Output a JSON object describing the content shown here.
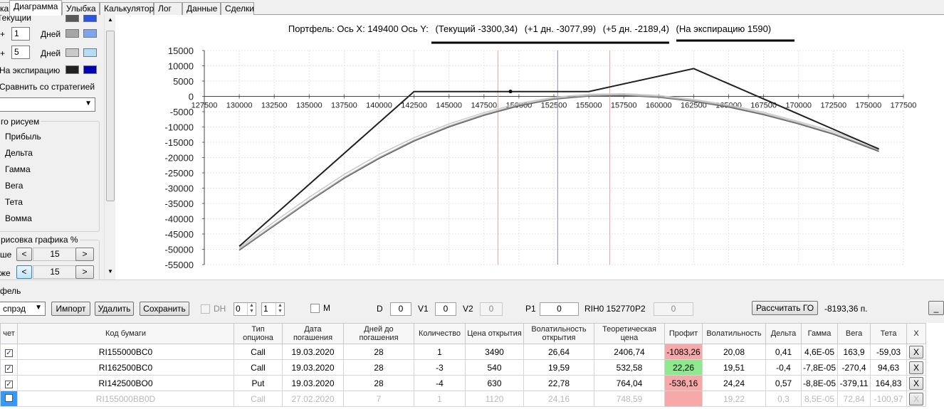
{
  "tabs": [
    "ка",
    "Диаграмма",
    "Улыбка",
    "Калькулятор",
    "Лог",
    "Данные",
    "Сделки"
  ],
  "left_panel": {
    "row_current_label": "Текущий",
    "row1_prefix": "+",
    "row1_value": "1",
    "row1_unit": "Дней",
    "row2_prefix": "+",
    "row2_value": "5",
    "row2_unit": "Дней",
    "expiry_label": "На экспирацию",
    "compare_label": "Сравнить со стратегией",
    "draw_group_title": "го рисуем",
    "draw_items": [
      "Прибыль",
      "Дельта",
      "Гамма",
      "Вега",
      "Тета",
      "Вомма"
    ],
    "render_group_title": "рисовка графика %",
    "higher_label": "ше",
    "higher_value": "15",
    "lower_label": "же",
    "lower_value": "15",
    "btn_less": "<",
    "btn_more": ">",
    "swatch_colors": {
      "current": [
        "#595959",
        "#2b57e0"
      ],
      "plus1": [
        "#a6a6a6",
        "#7ea6ee"
      ],
      "plus5": [
        "#c9c9c9",
        "#b3dcf7"
      ],
      "expiry": [
        "#202020",
        "#0000b8"
      ]
    }
  },
  "chart": {
    "title_prefix": "Портфель: Ось X: 149400 Ось Y:",
    "current": "(Текущий -3300,34)",
    "plus1": "(+1 дн. -3077,99)",
    "plus5": "(+5 дн. -2189,4)",
    "expiry": "(На экспирацию 1590)"
  },
  "chart_data": {
    "type": "line",
    "title": "Портфель: Ось X: 149400 Ось Y: (Текущий -3300,34) (+1 дн. -3077,99) (+5 дн. -2189,4) (На экспирацию 1590)",
    "xlim": [
      127500,
      177500
    ],
    "ylim": [
      -55000,
      15000
    ],
    "xticks": [
      127500,
      130000,
      132500,
      135000,
      137500,
      140000,
      142500,
      145000,
      147500,
      150000,
      152500,
      155000,
      157500,
      160000,
      162500,
      165000,
      167500,
      170000,
      172500,
      175000,
      177500
    ],
    "yticks": [
      15000,
      10000,
      5000,
      0,
      -5000,
      -10000,
      -15000,
      -20000,
      -25000,
      -30000,
      -35000,
      -40000,
      -45000,
      -50000,
      -55000
    ],
    "vlines": [
      {
        "x": 148500,
        "color": "#f2a0a0"
      },
      {
        "x": 152770,
        "color": "#8a8aaa"
      },
      {
        "x": 156500,
        "color": "#f2a0a0"
      }
    ],
    "marker": {
      "x": 149400,
      "y": 1590
    },
    "series": [
      {
        "color": "#202020",
        "x": [
          130000,
          142500,
          155000,
          162500,
          175750
        ],
        "y": [
          -49000,
          1590,
          1590,
          9100,
          -17200
        ]
      },
      {
        "color": "#c9c9c9",
        "x": [
          130000,
          132500,
          135000,
          137500,
          140000,
          142500,
          145000,
          147500,
          150000,
          152500,
          155000,
          157500,
          160000,
          162500,
          165000,
          167500,
          170000,
          172500,
          175750
        ],
        "y": [
          -49500,
          -41000,
          -33000,
          -25500,
          -19000,
          -13500,
          -9000,
          -5300,
          -2300,
          -300,
          700,
          900,
          300,
          -1000,
          -2800,
          -5200,
          -8200,
          -11500,
          -17000
        ]
      },
      {
        "color": "#a6a6a6",
        "x": [
          130000,
          132500,
          135000,
          137500,
          140000,
          142500,
          145000,
          147500,
          150000,
          152500,
          155000,
          157500,
          160000,
          162500,
          165000,
          167500,
          170000,
          172500,
          175750
        ],
        "y": [
          -50000,
          -42000,
          -34000,
          -26500,
          -20000,
          -14300,
          -9700,
          -5900,
          -2800,
          -700,
          300,
          500,
          -100,
          -1400,
          -3200,
          -5700,
          -8700,
          -12100,
          -17600
        ]
      },
      {
        "color": "#595959",
        "x": [
          130000,
          132500,
          135000,
          137500,
          140000,
          142500,
          145000,
          147500,
          150000,
          152500,
          155000,
          157500,
          160000,
          162500,
          165000,
          167500,
          170000,
          172500,
          175750
        ],
        "y": [
          -50300,
          -42300,
          -34300,
          -26800,
          -20300,
          -14600,
          -10000,
          -6200,
          -3100,
          -900,
          100,
          300,
          -300,
          -1600,
          -3500,
          -6000,
          -9000,
          -12400,
          -18000
        ]
      }
    ]
  },
  "bottom": {
    "section_title": "фель",
    "strategy_combo": "спрэд",
    "btn_import": "Импорт",
    "btn_delete": "Удалить",
    "btn_save": "Сохранить",
    "dh_label": "DH",
    "spin1": "0",
    "spin2": "1",
    "m_label": "M",
    "d_label": "D",
    "d_value": "0",
    "v1_label": "V1",
    "v1_value": "0",
    "v2_label": "V2",
    "v2_value": "0",
    "p1_label": "P1",
    "p1_value": "0",
    "rih_label": "RIH0 152770",
    "p2_label": "P2",
    "p2_value": "0",
    "btn_calc": "Рассчитать ГО",
    "go_value": "-8193,36 п.",
    "btn_min": "_"
  },
  "table": {
    "headers": [
      "чет",
      "Код бумаги",
      "Тип опциона",
      "Дата погашения",
      "Дней до погашения",
      "Количество",
      "Цена открытия",
      "Волатильность открытия",
      "Теоретическая цена",
      "Профит",
      "Волатильность",
      "Дельта",
      "Гамма",
      "Вега",
      "Тета",
      "X"
    ],
    "rows": [
      {
        "code": "RI155000BC0",
        "type": "Call",
        "date": "19.03.2020",
        "days": "28",
        "qty": "1",
        "price": "3490",
        "vol_open": "26,64",
        "theo": "2406,74",
        "profit": "-1083,26",
        "vol": "20,08",
        "delta": "0,41",
        "gamma": "4,6E-05",
        "vega": "163,9",
        "theta": "-59,03",
        "x": "X"
      },
      {
        "code": "RI162500BC0",
        "type": "Call",
        "date": "19.03.2020",
        "days": "28",
        "qty": "-3",
        "price": "540",
        "vol_open": "19,59",
        "theo": "532,58",
        "profit": "22,26",
        "vol": "19,51",
        "delta": "-0,4",
        "gamma": "-7,8E-05",
        "vega": "-270,4",
        "theta": "94,63",
        "x": "X"
      },
      {
        "code": "RI142500BO0",
        "type": "Put",
        "date": "19.03.2020",
        "days": "28",
        "qty": "-4",
        "price": "630",
        "vol_open": "22,78",
        "theo": "764,04",
        "profit": "-536,16",
        "vol": "24,24",
        "delta": "0,57",
        "gamma": "-8,8E-05",
        "vega": "-379,11",
        "theta": "164,83",
        "x": "X"
      },
      {
        "code": "RI155000BB0D",
        "type": "Call",
        "date": "27.02.2020",
        "days": "7",
        "qty": "1",
        "price": "1120",
        "vol_open": "24,16",
        "theo": "748,59",
        "profit": "",
        "vol": "19,22",
        "delta": "0,3",
        "gamma": "8,5E-05",
        "vega": "72,84",
        "theta": "-100,97",
        "x": "X"
      }
    ]
  }
}
